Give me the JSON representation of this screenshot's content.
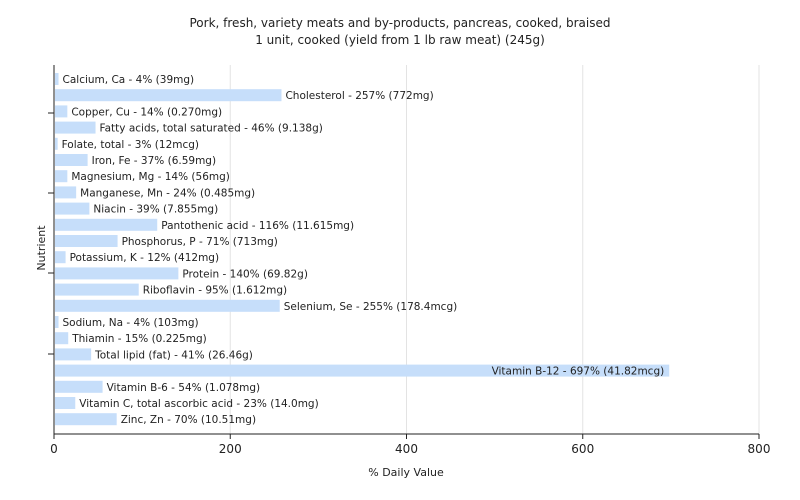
{
  "chart_data": {
    "type": "bar",
    "orientation": "horizontal",
    "title": "Pork, fresh, variety meats and by-products, pancreas, cooked, braised",
    "subtitle": "1 unit, cooked (yield from 1 lb raw meat) (245g)",
    "xlabel": "% Daily Value",
    "ylabel": "Nutrient",
    "xlim": [
      0,
      800
    ],
    "xticks": [
      "0",
      "200",
      "400",
      "600",
      "800"
    ],
    "grid": true,
    "bar_color": "#c6defa",
    "categories": [
      "Calcium, Ca",
      "Cholesterol",
      "Copper, Cu",
      "Fatty acids, total saturated",
      "Folate, total",
      "Iron, Fe",
      "Magnesium, Mg",
      "Manganese, Mn",
      "Niacin",
      "Pantothenic acid",
      "Phosphorus, P",
      "Potassium, K",
      "Protein",
      "Riboflavin",
      "Selenium, Se",
      "Sodium, Na",
      "Thiamin",
      "Total lipid (fat)",
      "Vitamin B-12",
      "Vitamin B-6",
      "Vitamin C, total ascorbic acid",
      "Zinc, Zn"
    ],
    "values": [
      4,
      257,
      14,
      46,
      3,
      37,
      14,
      24,
      39,
      116,
      71,
      12,
      140,
      95,
      255,
      4,
      15,
      41,
      697,
      54,
      23,
      70
    ],
    "labels": [
      "Calcium, Ca - 4% (39mg)",
      "Cholesterol - 257% (772mg)",
      "Copper, Cu - 14% (0.270mg)",
      "Fatty acids, total saturated - 46% (9.138g)",
      "Folate, total - 3% (12mcg)",
      "Iron, Fe - 37% (6.59mg)",
      "Magnesium, Mg - 14% (56mg)",
      "Manganese, Mn - 24% (0.485mg)",
      "Niacin - 39% (7.855mg)",
      "Pantothenic acid - 116% (11.615mg)",
      "Phosphorus, P - 71% (713mg)",
      "Potassium, K - 12% (412mg)",
      "Protein - 140% (69.82g)",
      "Riboflavin - 95% (1.612mg)",
      "Selenium, Se - 255% (178.4mcg)",
      "Sodium, Na - 4% (103mg)",
      "Thiamin - 15% (0.225mg)",
      "Total lipid (fat) - 41% (26.46g)",
      "Vitamin B-12 - 697% (41.82mcg)",
      "Vitamin B-6 - 54% (1.078mg)",
      "Vitamin C, total ascorbic acid - 23% (14.0mg)",
      "Zinc, Zn - 70% (10.51mg)"
    ]
  }
}
